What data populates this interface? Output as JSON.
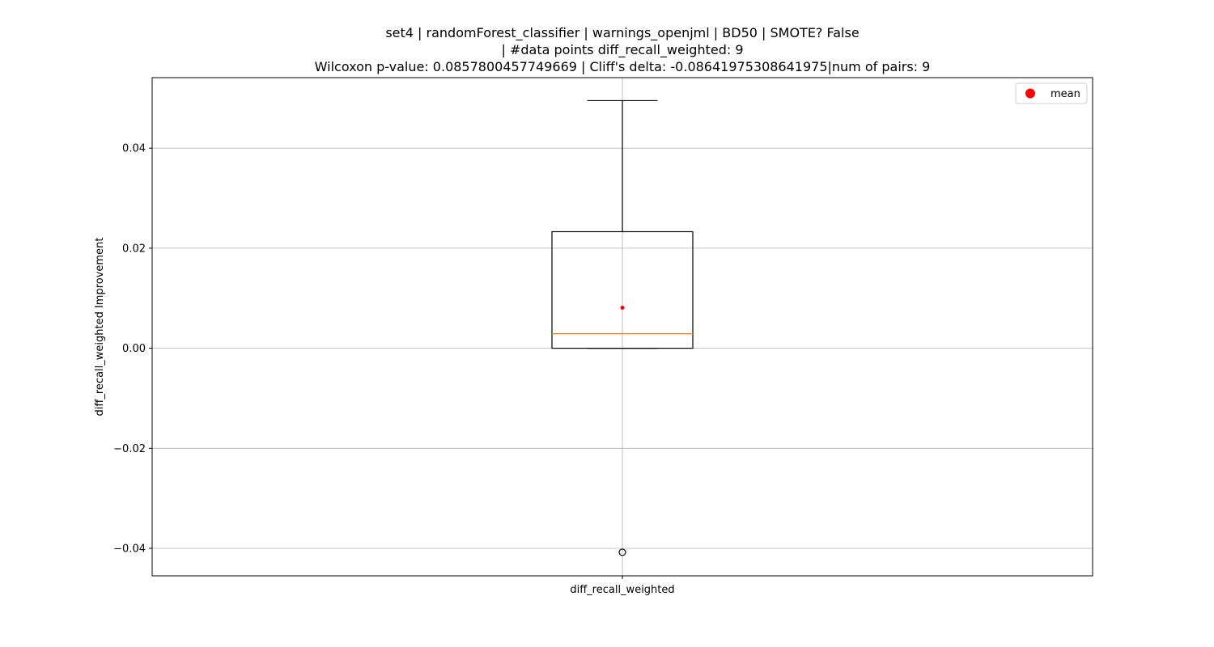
{
  "chart_data": {
    "type": "box",
    "title_lines": [
      "set4 | randomForest_classifier | warnings_openjml | BD50 | SMOTE? False",
      "| #data points diff_recall_weighted: 9",
      "Wilcoxon p-value: 0.0857800457749669 | Cliff's delta: -0.08641975308641975|num of pairs: 9"
    ],
    "ylabel": "diff_recall_weighted Improvement",
    "xlabel": "",
    "categories": [
      "diff_recall_weighted"
    ],
    "ylim": [
      -0.0455,
      0.0541
    ],
    "yticks": [
      -0.04,
      -0.02,
      0.0,
      0.02,
      0.04
    ],
    "ytick_labels": [
      "−0.04",
      "−0.02",
      "0.00",
      "0.02",
      "0.04"
    ],
    "grid": true,
    "legend": {
      "position": "top-right",
      "entries": [
        {
          "label": "mean",
          "color": "#ff0000",
          "marker": "circle"
        }
      ]
    },
    "box": {
      "q1": 0.0,
      "median": 0.0029,
      "q3": 0.0233,
      "whisker_low": 0.0,
      "whisker_high": 0.0495,
      "mean": 0.0081,
      "outliers": [
        -0.0408
      ]
    },
    "colors": {
      "box": "#000000",
      "median": "#ff7f0e",
      "mean": "#ff0000",
      "grid": "#b0b0b0"
    }
  }
}
